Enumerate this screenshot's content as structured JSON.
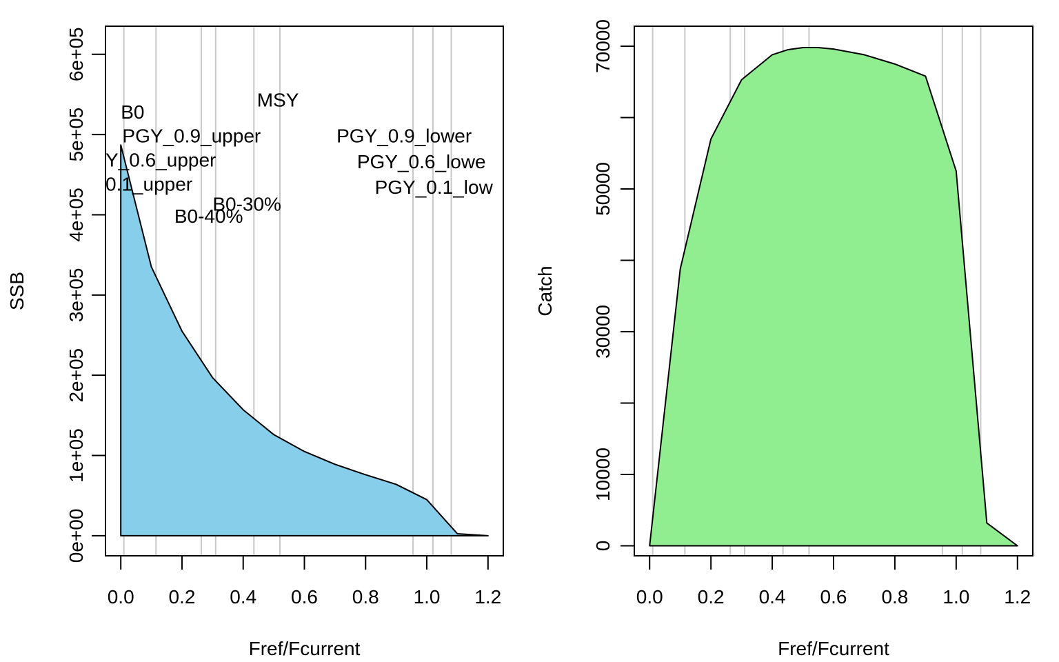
{
  "chart_data": [
    {
      "type": "area",
      "xlabel": "Fref/Fcurrent",
      "ylabel": "SSB",
      "xlim": [
        -0.05,
        1.25
      ],
      "ylim": [
        -25000,
        635000
      ],
      "x_ticks": [
        {
          "value": 0.0,
          "label": "0.0"
        },
        {
          "value": 0.2,
          "label": "0.2"
        },
        {
          "value": 0.4,
          "label": "0.4"
        },
        {
          "value": 0.6,
          "label": "0.6"
        },
        {
          "value": 0.8,
          "label": "0.8"
        },
        {
          "value": 1.0,
          "label": "1.0"
        },
        {
          "value": 1.2,
          "label": "1.2"
        }
      ],
      "y_ticks": [
        {
          "value": 0,
          "label": "0e+00"
        },
        {
          "value": 100000,
          "label": "1e+05"
        },
        {
          "value": 200000,
          "label": "2e+05"
        },
        {
          "value": 300000,
          "label": "3e+05"
        },
        {
          "value": 400000,
          "label": "4e+05"
        },
        {
          "value": 500000,
          "label": "5e+05"
        },
        {
          "value": 600000,
          "label": "6e+05"
        }
      ],
      "x": [
        0.0,
        0.1,
        0.2,
        0.3,
        0.4,
        0.5,
        0.6,
        0.7,
        0.8,
        0.9,
        1.0,
        1.1,
        1.2
      ],
      "values": [
        487000,
        335000,
        255000,
        197000,
        157000,
        126000,
        105000,
        89000,
        76000,
        64000,
        45000,
        2500,
        0
      ],
      "fill_color": "#87CEEB",
      "grid": "vertical reference lines",
      "ref_lines": [
        0.01,
        0.115,
        0.263,
        0.31,
        0.435,
        0.52,
        0.955,
        1.02,
        1.08
      ],
      "ref_labels": [
        {
          "text": "B0",
          "x": 0.0,
          "y": 520000,
          "align": "left"
        },
        {
          "text": "PGY_0.9_upper",
          "x": 0.005,
          "y": 490000,
          "align": "left"
        },
        {
          "text": "Y_0.6_upper",
          "x": -0.05,
          "y": 460000,
          "align": "left"
        },
        {
          "text": "0.1_upper",
          "x": -0.05,
          "y": 430000,
          "align": "left"
        },
        {
          "text": "B0-30%",
          "x": 0.3,
          "y": 405000,
          "align": "left"
        },
        {
          "text": "B0-40%",
          "x": 0.175,
          "y": 390000,
          "align": "left"
        },
        {
          "text": "MSY",
          "x": 0.445,
          "y": 535000,
          "align": "left"
        },
        {
          "text": "PGY_0.9_lower",
          "x": 0.705,
          "y": 490000,
          "align": "left"
        },
        {
          "text": "PGY_0.6_lowe",
          "x": 0.772,
          "y": 458000,
          "align": "left"
        },
        {
          "text": "PGY_0.1_low",
          "x": 0.83,
          "y": 426000,
          "align": "left"
        }
      ]
    },
    {
      "type": "area",
      "xlabel": "Fref/Fcurrent",
      "ylabel": "Catch",
      "xlim": [
        -0.05,
        1.25
      ],
      "ylim": [
        -1400,
        72800
      ],
      "x_ticks": [
        {
          "value": 0.0,
          "label": "0.0"
        },
        {
          "value": 0.2,
          "label": "0.2"
        },
        {
          "value": 0.4,
          "label": "0.4"
        },
        {
          "value": 0.6,
          "label": "0.6"
        },
        {
          "value": 0.8,
          "label": "0.8"
        },
        {
          "value": 1.0,
          "label": "1.0"
        },
        {
          "value": 1.2,
          "label": "1.2"
        }
      ],
      "y_ticks": [
        {
          "value": 0,
          "label": "0"
        },
        {
          "value": 10000,
          "label": "10000"
        },
        {
          "value": 20000,
          "label": ""
        },
        {
          "value": 30000,
          "label": "30000"
        },
        {
          "value": 40000,
          "label": ""
        },
        {
          "value": 50000,
          "label": "50000"
        },
        {
          "value": 60000,
          "label": ""
        },
        {
          "value": 70000,
          "label": "70000"
        }
      ],
      "x": [
        0.0,
        0.1,
        0.2,
        0.3,
        0.4,
        0.45,
        0.5,
        0.55,
        0.6,
        0.7,
        0.8,
        0.9,
        1.0,
        1.1,
        1.2
      ],
      "values": [
        0,
        38800,
        57000,
        65300,
        68800,
        69500,
        69800,
        69800,
        69600,
        68800,
        67500,
        65800,
        52500,
        3200,
        0
      ],
      "fill_color": "#90EE90",
      "grid": "vertical reference lines",
      "ref_lines": [
        0.01,
        0.115,
        0.263,
        0.31,
        0.435,
        0.52,
        0.955,
        1.02,
        1.08
      ]
    }
  ]
}
